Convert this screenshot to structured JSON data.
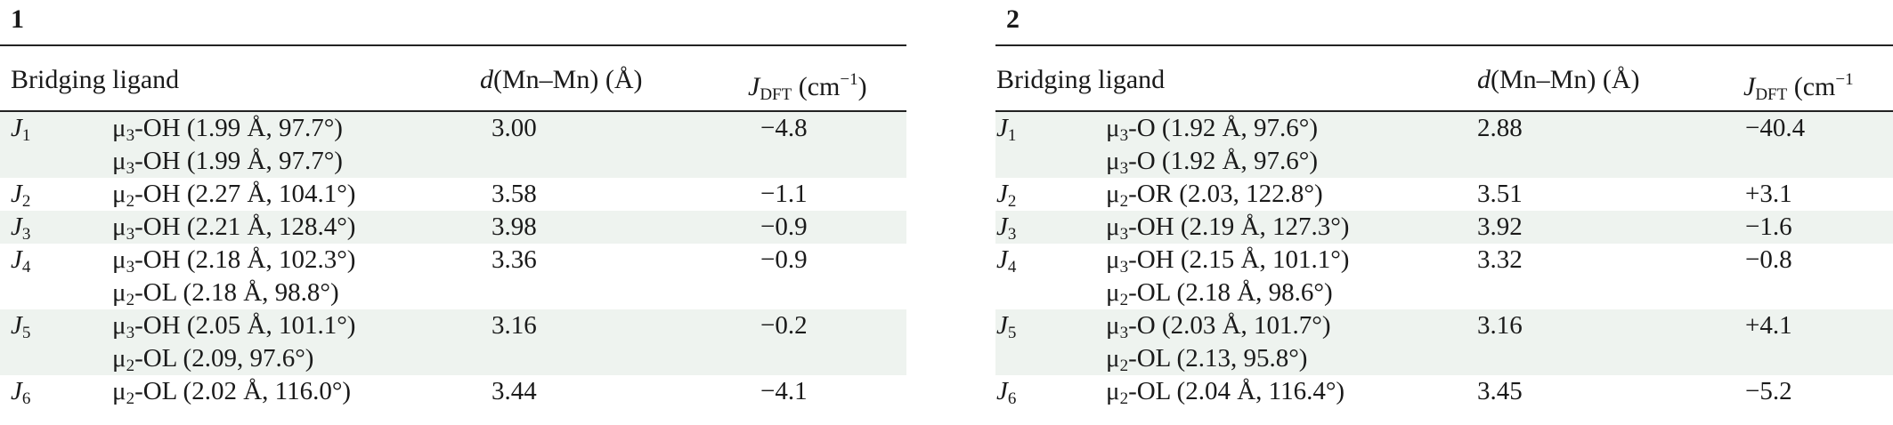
{
  "tables": [
    {
      "label": "1",
      "headers": {
        "ligand": "Bridging ligand",
        "d_var": "d",
        "d_rest": "(Mn–Mn) (Å)",
        "j_var": "J",
        "j_sub": "DFT",
        "j_unit_pre": " (cm",
        "j_unit_sup": "−1",
        "j_unit_post": ")"
      },
      "rows": [
        {
          "j": "J",
          "jsub": "1",
          "ligands": [
            {
              "mu": "μ",
              "mu_sub": "3",
              "rest": "-OH (1.99 Å, 97.7°)"
            },
            {
              "mu": "μ",
              "mu_sub": "3",
              "rest": "-OH (1.99 Å, 97.7°)"
            }
          ],
          "d": "3.00",
          "jdft": "−4.8"
        },
        {
          "j": "J",
          "jsub": "2",
          "ligands": [
            {
              "mu": "μ",
              "mu_sub": "2",
              "rest": "-OH (2.27 Å, 104.1°)"
            }
          ],
          "d": "3.58",
          "jdft": "−1.1"
        },
        {
          "j": "J",
          "jsub": "3",
          "ligands": [
            {
              "mu": "μ",
              "mu_sub": "3",
              "rest": "-OH (2.21 Å, 128.4°)"
            }
          ],
          "d": "3.98",
          "jdft": "−0.9"
        },
        {
          "j": "J",
          "jsub": "4",
          "ligands": [
            {
              "mu": "μ",
              "mu_sub": "3",
              "rest": "-OH (2.18 Å, 102.3°)"
            },
            {
              "mu": "μ",
              "mu_sub": "2",
              "rest": "-OL (2.18 Å, 98.8°)"
            }
          ],
          "d": "3.36",
          "jdft": "−0.9"
        },
        {
          "j": "J",
          "jsub": "5",
          "ligands": [
            {
              "mu": "μ",
              "mu_sub": "3",
              "rest": "-OH (2.05 Å, 101.1°)"
            },
            {
              "mu": "μ",
              "mu_sub": "2",
              "rest": "-OL (2.09, 97.6°)"
            }
          ],
          "d": "3.16",
          "jdft": "−0.2"
        },
        {
          "j": "J",
          "jsub": "6",
          "ligands": [
            {
              "mu": "μ",
              "mu_sub": "2",
              "rest": "-OL (2.02 Å, 116.0°)"
            }
          ],
          "d": "3.44",
          "jdft": "−4.1"
        }
      ]
    },
    {
      "label": "2",
      "headers": {
        "ligand": "Bridging ligand",
        "d_var": "d",
        "d_rest": "(Mn–Mn) (Å)",
        "j_var": "J",
        "j_sub": "DFT",
        "j_unit_pre": " (cm",
        "j_unit_sup": "−1",
        "j_unit_post": ""
      },
      "rows": [
        {
          "j": "J",
          "jsub": "1",
          "ligands": [
            {
              "mu": "μ",
              "mu_sub": "3",
              "rest": "-O (1.92 Å, 97.6°)"
            },
            {
              "mu": "μ",
              "mu_sub": "3",
              "rest": "-O (1.92 Å, 97.6°)"
            }
          ],
          "d": "2.88",
          "jdft": "−40.4"
        },
        {
          "j": "J",
          "jsub": "2",
          "ligands": [
            {
              "mu": "μ",
              "mu_sub": "2",
              "rest": "-OR (2.03, 122.8°)"
            }
          ],
          "d": "3.51",
          "jdft": "+3.1"
        },
        {
          "j": "J",
          "jsub": "3",
          "ligands": [
            {
              "mu": "μ",
              "mu_sub": "3",
              "rest": "-OH (2.19 Å, 127.3°)"
            }
          ],
          "d": "3.92",
          "jdft": "−1.6"
        },
        {
          "j": "J",
          "jsub": "4",
          "ligands": [
            {
              "mu": "μ",
              "mu_sub": "3",
              "rest": "-OH (2.15 Å, 101.1°)"
            },
            {
              "mu": "μ",
              "mu_sub": "2",
              "rest": "-OL (2.18 Å, 98.6°)"
            }
          ],
          "d": "3.32",
          "jdft": "−0.8"
        },
        {
          "j": "J",
          "jsub": "5",
          "ligands": [
            {
              "mu": "μ",
              "mu_sub": "3",
              "rest": "-O (2.03 Å, 101.7°)"
            },
            {
              "mu": "μ",
              "mu_sub": "2",
              "rest": "-OL (2.13, 95.8°)"
            }
          ],
          "d": "3.16",
          "jdft": "+4.1"
        },
        {
          "j": "J",
          "jsub": "6",
          "ligands": [
            {
              "mu": "μ",
              "mu_sub": "2",
              "rest": "-OL (2.04 Å, 116.4°)"
            }
          ],
          "d": "3.45",
          "jdft": "−5.2"
        }
      ]
    }
  ]
}
